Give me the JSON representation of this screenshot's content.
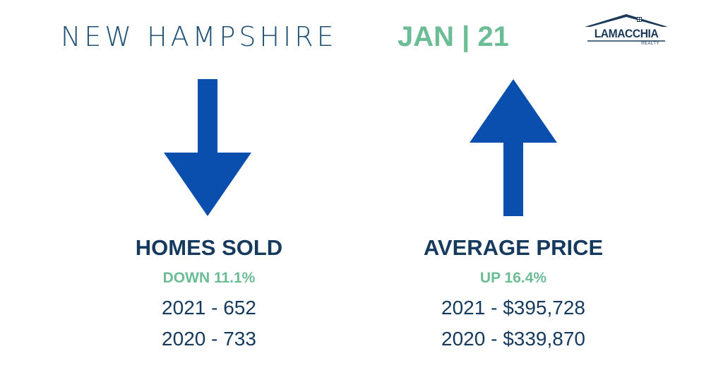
{
  "header": {
    "region": "NEW HAMPSHIRE",
    "period": "JAN | 21"
  },
  "logo": {
    "name": "LAMACCHIA",
    "sub": "REALTY"
  },
  "colors": {
    "navy": "#163a5e",
    "green": "#6cbc96",
    "arrow_blue": "#0b4fae"
  },
  "homes_sold": {
    "title": "HOMES SOLD",
    "change": "DOWN 11.1%",
    "line_2021": "2021 - 652",
    "line_2020": "2020 - 733",
    "direction": "down",
    "icon": "arrow-down-icon"
  },
  "average_price": {
    "title": "AVERAGE PRICE",
    "change": "UP 16.4%",
    "line_2021": "2021 - $395,728",
    "line_2020": "2020 - $339,870",
    "direction": "up",
    "icon": "arrow-up-icon"
  }
}
